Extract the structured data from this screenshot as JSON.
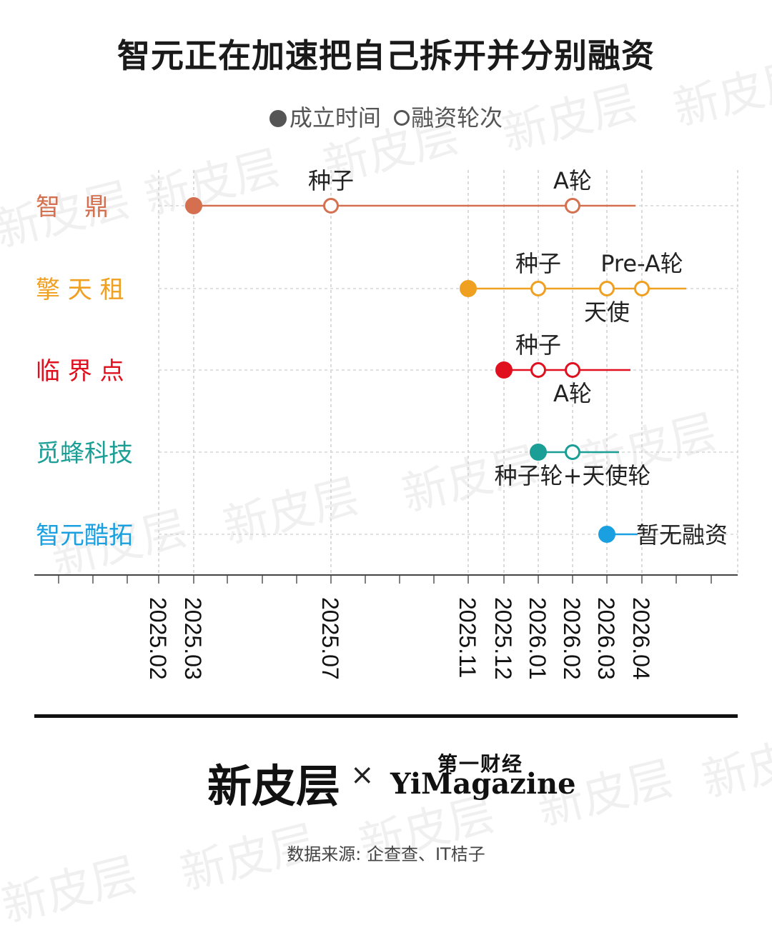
{
  "title": "智元正在加速把自己拆开并分别融资",
  "legend": {
    "founded": "成立时间",
    "round": "融资轮次"
  },
  "chart_data": {
    "type": "timeline",
    "x_axis_ticks": [
      "2025.02",
      "2025.03",
      "2025.07",
      "2025.11",
      "2025.12",
      "2026.01",
      "2026.02",
      "2026.03",
      "2026.04"
    ],
    "series": [
      {
        "label": "智　鼎",
        "color": "#d4704f",
        "founded": "2025.03",
        "rounds": [
          {
            "date": "2025.07",
            "label": "种子",
            "label_pos": "above"
          },
          {
            "date": "2026.02",
            "label": "A轮",
            "label_pos": "above"
          }
        ]
      },
      {
        "label": "擎 天 租",
        "color": "#f0a020",
        "founded": "2025.11",
        "rounds": [
          {
            "date": "2026.01",
            "label": "种子",
            "label_pos": "above"
          },
          {
            "date": "2026.03",
            "label": "天使",
            "label_pos": "below"
          },
          {
            "date": "2026.04",
            "label": "Pre-A轮",
            "label_pos": "above"
          }
        ]
      },
      {
        "label": "临 界 点",
        "color": "#e0101e",
        "founded": "2025.12",
        "rounds": [
          {
            "date": "2026.01",
            "label": "种子",
            "label_pos": "above"
          },
          {
            "date": "2026.02",
            "label": "A轮",
            "label_pos": "below"
          }
        ]
      },
      {
        "label": "觅蜂科技",
        "color": "#1a9e96",
        "founded": "2026.01",
        "rounds": [
          {
            "date": "2026.02",
            "label": "种子轮+天使轮",
            "label_pos": "below"
          }
        ]
      },
      {
        "label": "智元酷拓",
        "color": "#1aa0e0",
        "founded": "2026.03",
        "rounds": [],
        "note": "暂无融资"
      }
    ]
  },
  "footer": {
    "logo_cn": "新皮层",
    "times": "×",
    "partner_cn": "第一财经",
    "partner_en": "YiMagazine",
    "source": "数据来源: 企查查、IT桔子"
  },
  "watermark": "新皮层"
}
